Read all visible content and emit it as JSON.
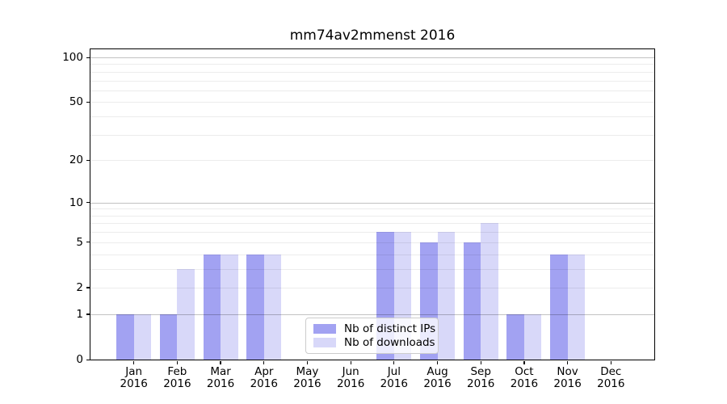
{
  "chart_data": {
    "type": "bar",
    "title": "mm74av2mmenst 2016",
    "categories": [
      "Jan",
      "Feb",
      "Mar",
      "Apr",
      "May",
      "Jun",
      "Jul",
      "Aug",
      "Sep",
      "Oct",
      "Nov",
      "Dec"
    ],
    "year_label": "2016",
    "series": [
      {
        "name": "Nb of distinct IPs",
        "color": "#a2a2f2",
        "values": [
          1,
          1,
          4,
          4,
          0,
          0,
          6,
          5,
          5,
          1,
          4,
          0
        ]
      },
      {
        "name": "Nb of downloads",
        "color": "#d8d8f9",
        "values": [
          1,
          3,
          4,
          4,
          0,
          0,
          6,
          6,
          7,
          1,
          4,
          0
        ]
      }
    ],
    "scale": "log10(1+v)",
    "ylim": [
      0,
      100
    ],
    "yticks": [
      0,
      1,
      2,
      5,
      10,
      20,
      50,
      100
    ],
    "grid": {
      "major_values": [
        1,
        10,
        100
      ],
      "minor_values": [
        2,
        3,
        4,
        5,
        6,
        7,
        8,
        9,
        20,
        30,
        40,
        50,
        60,
        70,
        80,
        90
      ],
      "major_color": "rgba(0,0,0,0.24)",
      "minor_color": "rgba(0,0,0,0.075)",
      "drawn_over_bars": true
    },
    "legend_position": "lower center",
    "axis_color": "#000000",
    "background": "#ffffff"
  }
}
